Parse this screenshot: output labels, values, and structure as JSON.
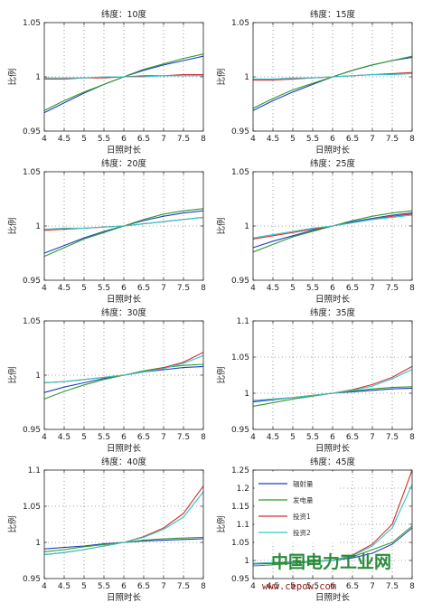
{
  "figure": {
    "series_names": [
      "辐射量",
      "发电量",
      "投资1",
      "投资2"
    ],
    "series_colors": [
      "#1f3fbf",
      "#2e9a2e",
      "#d43030",
      "#2fc7c7"
    ],
    "watermark": {
      "main": "中国电力工业网",
      "url": "www.cepow.com"
    }
  },
  "chart_data": [
    {
      "type": "line",
      "title": "纬度：10度",
      "xlabel": "日照时长",
      "ylabel": "比例",
      "x": [
        4,
        4.5,
        5,
        5.5,
        6,
        6.5,
        7,
        7.5,
        8
      ],
      "xlim": [
        4,
        8
      ],
      "ylim": [
        0.95,
        1.05
      ],
      "xticks": [
        "4",
        "4.5",
        "5",
        "5.5",
        "6",
        "6.5",
        "7",
        "7.5",
        "8"
      ],
      "yticks": [
        0.95,
        1,
        1.05
      ],
      "ytick_labels": [
        "0.95",
        "1",
        "1.05"
      ],
      "grid": true,
      "series": [
        {
          "values": [
            0.967,
            0.976,
            0.985,
            0.993,
            1.0,
            1.006,
            1.011,
            1.015,
            1.019
          ]
        },
        {
          "values": [
            0.969,
            0.978,
            0.986,
            0.993,
            1.0,
            1.007,
            1.012,
            1.017,
            1.021
          ]
        },
        {
          "values": [
            0.998,
            0.998,
            0.999,
            0.999,
            1.0,
            1.001,
            1.001,
            1.002,
            1.002
          ]
        },
        {
          "values": [
            0.999,
            0.999,
            0.999,
            1.0,
            1.0,
            1.0,
            1.001,
            1.001,
            1.001
          ]
        }
      ]
    },
    {
      "type": "line",
      "title": "纬度：15度",
      "xlabel": "日照时长",
      "ylabel": "比例",
      "x": [
        4,
        4.5,
        5,
        5.5,
        6,
        6.5,
        7,
        7.5,
        8
      ],
      "xlim": [
        4,
        8
      ],
      "ylim": [
        0.95,
        1.05
      ],
      "xticks": [
        "4",
        "4.5",
        "5",
        "5.5",
        "6",
        "6.5",
        "7",
        "7.5",
        "8"
      ],
      "yticks": [
        0.95,
        1,
        1.05
      ],
      "ytick_labels": [
        "0.95",
        "1",
        "1.05"
      ],
      "grid": true,
      "series": [
        {
          "values": [
            0.969,
            0.978,
            0.986,
            0.993,
            1.0,
            1.006,
            1.011,
            1.015,
            1.018
          ]
        },
        {
          "values": [
            0.971,
            0.98,
            0.988,
            0.994,
            1.0,
            1.006,
            1.011,
            1.015,
            1.019
          ]
        },
        {
          "values": [
            0.997,
            0.997,
            0.998,
            0.999,
            1.0,
            1.001,
            1.002,
            1.003,
            1.004
          ]
        },
        {
          "values": [
            0.998,
            0.998,
            0.999,
            0.999,
            1.0,
            1.001,
            1.002,
            1.002,
            1.003
          ]
        }
      ]
    },
    {
      "type": "line",
      "title": "纬度：20度",
      "xlabel": "日照时长",
      "ylabel": "比例",
      "x": [
        4,
        4.5,
        5,
        5.5,
        6,
        6.5,
        7,
        7.5,
        8
      ],
      "xlim": [
        4,
        8
      ],
      "ylim": [
        0.95,
        1.05
      ],
      "xticks": [
        "4",
        "4.5",
        "5",
        "5.5",
        "6",
        "6.5",
        "7",
        "7.5",
        "8"
      ],
      "yticks": [
        0.95,
        1,
        1.05
      ],
      "ytick_labels": [
        "0.95",
        "1",
        "1.05"
      ],
      "grid": true,
      "series": [
        {
          "values": [
            0.975,
            0.982,
            0.989,
            0.995,
            1.0,
            1.005,
            1.009,
            1.012,
            1.014
          ]
        },
        {
          "values": [
            0.972,
            0.98,
            0.988,
            0.994,
            1.0,
            1.006,
            1.011,
            1.014,
            1.016
          ]
        },
        {
          "values": [
            0.996,
            0.997,
            0.998,
            0.999,
            1.0,
            1.002,
            1.004,
            1.006,
            1.008
          ]
        },
        {
          "values": [
            0.997,
            0.998,
            0.998,
            0.999,
            1.0,
            1.002,
            1.004,
            1.006,
            1.008
          ]
        }
      ]
    },
    {
      "type": "line",
      "title": "纬度：25度",
      "xlabel": "日照时长",
      "ylabel": "比例",
      "x": [
        4,
        4.5,
        5,
        5.5,
        6,
        6.5,
        7,
        7.5,
        8
      ],
      "xlim": [
        4,
        8
      ],
      "ylim": [
        0.95,
        1.05
      ],
      "xticks": [
        "4",
        "4.5",
        "5",
        "5.5",
        "6",
        "6.5",
        "7",
        "7.5",
        "8"
      ],
      "yticks": [
        0.95,
        1,
        1.05
      ],
      "ytick_labels": [
        "0.95",
        "1",
        "1.05"
      ],
      "grid": true,
      "series": [
        {
          "values": [
            0.98,
            0.986,
            0.991,
            0.996,
            1.0,
            1.004,
            1.007,
            1.01,
            1.012
          ]
        },
        {
          "values": [
            0.976,
            0.983,
            0.99,
            0.995,
            1.0,
            1.005,
            1.009,
            1.012,
            1.014
          ]
        },
        {
          "values": [
            0.988,
            0.991,
            0.994,
            0.997,
            1.0,
            1.003,
            1.006,
            1.009,
            1.011
          ]
        },
        {
          "values": [
            0.989,
            0.992,
            0.995,
            0.998,
            1.0,
            1.003,
            1.006,
            1.008,
            1.01
          ]
        }
      ]
    },
    {
      "type": "line",
      "title": "纬度：30度",
      "xlabel": "日照时长",
      "ylabel": "比例",
      "x": [
        4,
        4.5,
        5,
        5.5,
        6,
        6.5,
        7,
        7.5,
        8
      ],
      "xlim": [
        4,
        8
      ],
      "ylim": [
        0.95,
        1.05
      ],
      "xticks": [
        "4",
        "4.5",
        "5",
        "5.5",
        "6",
        "6.5",
        "7",
        "7.5",
        "8"
      ],
      "yticks": [
        0.95,
        1,
        1.05
      ],
      "ytick_labels": [
        "0.95",
        "1",
        "1.05"
      ],
      "grid": true,
      "series": [
        {
          "values": [
            0.984,
            0.989,
            0.993,
            0.997,
            1.0,
            1.003,
            1.005,
            1.007,
            1.008
          ]
        },
        {
          "values": [
            0.978,
            0.985,
            0.991,
            0.996,
            1.0,
            1.004,
            1.007,
            1.009,
            1.01
          ]
        },
        {
          "values": [
            0.993,
            0.994,
            0.996,
            0.998,
            1.0,
            1.003,
            1.007,
            1.012,
            1.021
          ]
        },
        {
          "values": [
            0.993,
            0.994,
            0.996,
            0.998,
            1.0,
            1.003,
            1.006,
            1.011,
            1.018
          ]
        }
      ]
    },
    {
      "type": "line",
      "title": "纬度：35度",
      "xlabel": "日照时长",
      "ylabel": "比例",
      "x": [
        4,
        4.5,
        5,
        5.5,
        6,
        6.5,
        7,
        7.5,
        8
      ],
      "xlim": [
        4,
        8
      ],
      "ylim": [
        0.95,
        1.1
      ],
      "xticks": [
        "4",
        "4.5",
        "5",
        "5.5",
        "6",
        "6.5",
        "7",
        "7.5",
        "8"
      ],
      "yticks": [
        0.95,
        1,
        1.05,
        1.1
      ],
      "ytick_labels": [
        "0.95",
        "1",
        "1.05",
        "1.1"
      ],
      "grid": true,
      "series": [
        {
          "values": [
            0.988,
            0.991,
            0.994,
            0.997,
            1.0,
            1.002,
            1.004,
            1.006,
            1.007
          ]
        },
        {
          "values": [
            0.982,
            0.987,
            0.992,
            0.996,
            1.0,
            1.003,
            1.006,
            1.008,
            1.009
          ]
        },
        {
          "values": [
            0.99,
            0.992,
            0.994,
            0.997,
            1.0,
            1.005,
            1.012,
            1.022,
            1.037
          ]
        },
        {
          "values": [
            0.99,
            0.992,
            0.994,
            0.997,
            1.0,
            1.004,
            1.01,
            1.02,
            1.033
          ]
        }
      ]
    },
    {
      "type": "line",
      "title": "纬度：40度",
      "xlabel": "日照时长",
      "ylabel": "比例",
      "x": [
        4,
        4.5,
        5,
        5.5,
        6,
        6.5,
        7,
        7.5,
        8
      ],
      "xlim": [
        4,
        8
      ],
      "ylim": [
        0.95,
        1.1
      ],
      "xticks": [
        "4",
        "4.5",
        "5",
        "5.5",
        "6",
        "6.5",
        "7",
        "7.5",
        "8"
      ],
      "yticks": [
        0.95,
        1,
        1.05,
        1.1
      ],
      "ytick_labels": [
        "0.95",
        "1",
        "1.05",
        "1.1"
      ],
      "grid": true,
      "series": [
        {
          "values": [
            0.991,
            0.993,
            0.995,
            0.998,
            1.0,
            1.002,
            1.003,
            1.004,
            1.005
          ]
        },
        {
          "values": [
            0.987,
            0.99,
            0.994,
            0.997,
            1.0,
            1.003,
            1.005,
            1.006,
            1.007
          ]
        },
        {
          "values": [
            0.983,
            0.986,
            0.99,
            0.995,
            1.0,
            1.008,
            1.02,
            1.04,
            1.078
          ]
        },
        {
          "values": [
            0.983,
            0.986,
            0.99,
            0.995,
            1.0,
            1.007,
            1.018,
            1.035,
            1.07
          ]
        }
      ]
    },
    {
      "type": "line",
      "title": "纬度：45度",
      "xlabel": "日照时长",
      "ylabel": "比例",
      "x": [
        4,
        4.5,
        5,
        5.5,
        6,
        6.5,
        7,
        7.5,
        8
      ],
      "xlim": [
        4,
        8
      ],
      "ylim": [
        0.95,
        1.25
      ],
      "xticks": [
        "4",
        "4.5",
        "5",
        "5.5",
        "6",
        "6.5",
        "7",
        "7.5",
        "8"
      ],
      "yticks": [
        0.95,
        1,
        1.05,
        1.1,
        1.15,
        1.2,
        1.25
      ],
      "ytick_labels": [
        "0.95",
        "1",
        "1.05",
        "1.1",
        "1.15",
        "1.2",
        "1.25"
      ],
      "grid": true,
      "legend": "top-left",
      "series": [
        {
          "values": [
            0.99,
            0.992,
            0.995,
            0.998,
            1.0,
            1.007,
            1.02,
            1.045,
            1.09
          ]
        },
        {
          "values": [
            0.985,
            0.988,
            0.992,
            0.996,
            1.0,
            1.01,
            1.03,
            1.05,
            1.095
          ]
        },
        {
          "values": [
            0.992,
            0.994,
            0.996,
            0.998,
            1.0,
            1.015,
            1.045,
            1.1,
            1.25
          ]
        },
        {
          "values": [
            0.992,
            0.994,
            0.996,
            0.998,
            1.0,
            1.013,
            1.04,
            1.09,
            1.21
          ]
        }
      ]
    }
  ]
}
